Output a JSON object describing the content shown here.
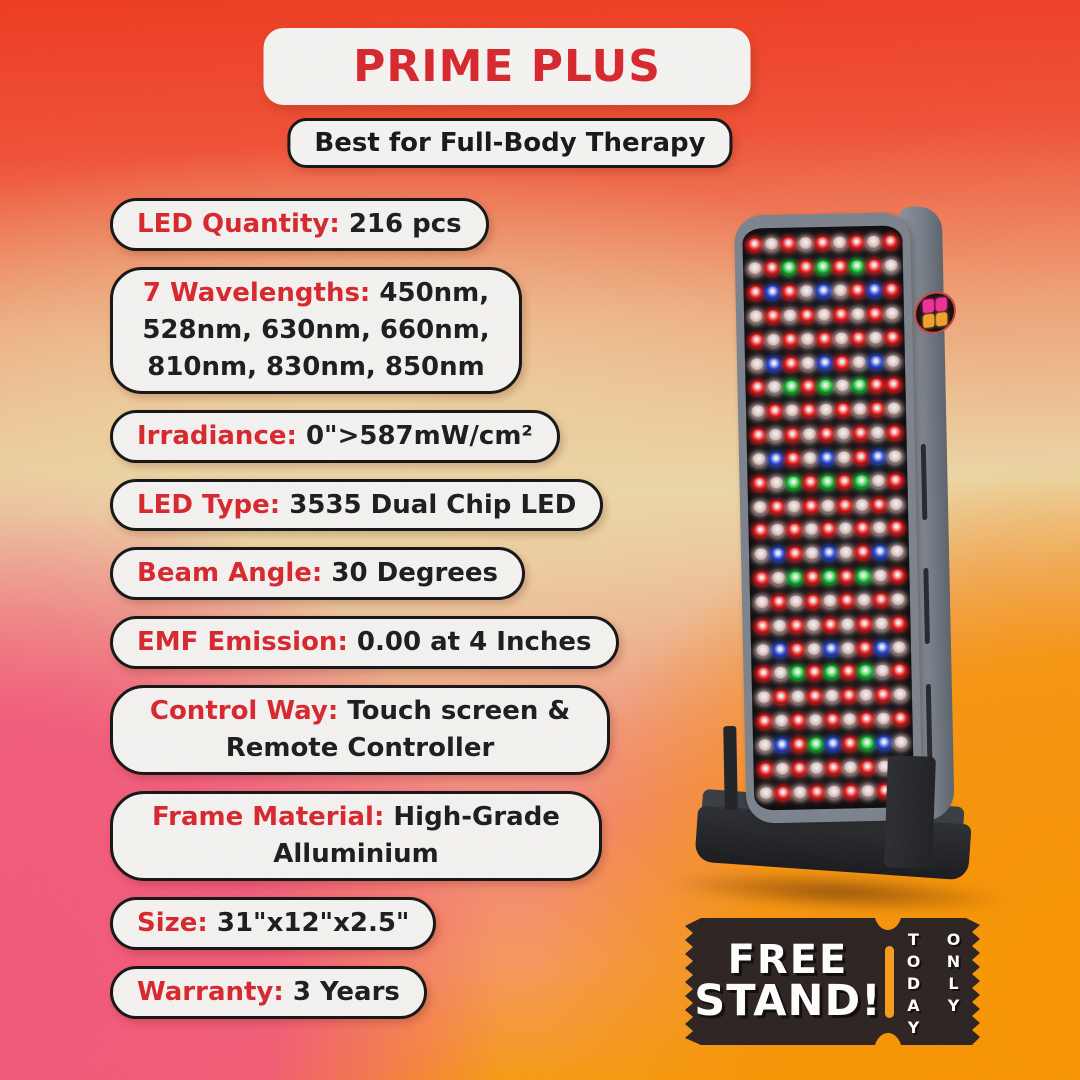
{
  "title": "PRIME PLUS",
  "subtitle": "Best for Full-Body Therapy",
  "specs": [
    {
      "label": "LED Quantity:",
      "value": "216 pcs"
    },
    {
      "label": "7 Wavelengths:",
      "value": "450nm, 528nm, 630nm, 660nm, 810nm, 830nm, 850nm"
    },
    {
      "label": "Irradiance:",
      "value": "0\">587mW/cm²"
    },
    {
      "label": "LED Type:",
      "value": "3535 Dual Chip LED"
    },
    {
      "label": "Beam Angle:",
      "value": "30 Degrees"
    },
    {
      "label": "EMF Emission:",
      "value": "0.00 at 4 Inches"
    },
    {
      "label": "Control Way:",
      "value": "Touch screen & Remote Controller"
    },
    {
      "label": "Frame Material:",
      "value": "High-Grade Alluminium"
    },
    {
      "label": "Size:",
      "value": "31\"x12\"x2.5\""
    },
    {
      "label": "Warranty:",
      "value": "3 Years"
    }
  ],
  "coupon": {
    "line1": "FREE",
    "line2": "STAND!",
    "tag1": "TODAY",
    "tag2": "ONLY"
  },
  "colors": {
    "accent_red": "#d7262c",
    "text_dark": "#1b1b1b",
    "pill_bg": "#f4f2f0",
    "coupon_bg": "#2b2220",
    "coupon_slot_orange": "#f79b1a"
  },
  "panel": {
    "columns": 9,
    "rows": 24,
    "led_colors": {
      "r": "#ff1f1f",
      "g": "#1ed43d",
      "b": "#2a4fe8",
      "w": "#d9bab6"
    },
    "led_pattern": [
      "rwrwrwrwr",
      "wrgrgrgrw",
      "rbrwbwrbr",
      "wrwrwrwrw",
      "rwrwrwrwr",
      "wbrwbrwbw",
      "rwgrgwgrr",
      "wrwrwrwrw",
      "rwrwrwrwr",
      "wbrwbwrbw",
      "rwgrgrgwr",
      "wrwrwrwrw",
      "rwrwrwrwr",
      "wbrwbwrbw",
      "rwgrgrgwr",
      "wrwrwrwrw",
      "rwrwrwrwr",
      "wbrwbwrbw",
      "rwgrgrgwr",
      "wrwrwrwrw",
      "rwrwrwrwr",
      "wbrgbrgbw",
      "rwrwrwrwr",
      "wrwrwrwrw"
    ]
  }
}
